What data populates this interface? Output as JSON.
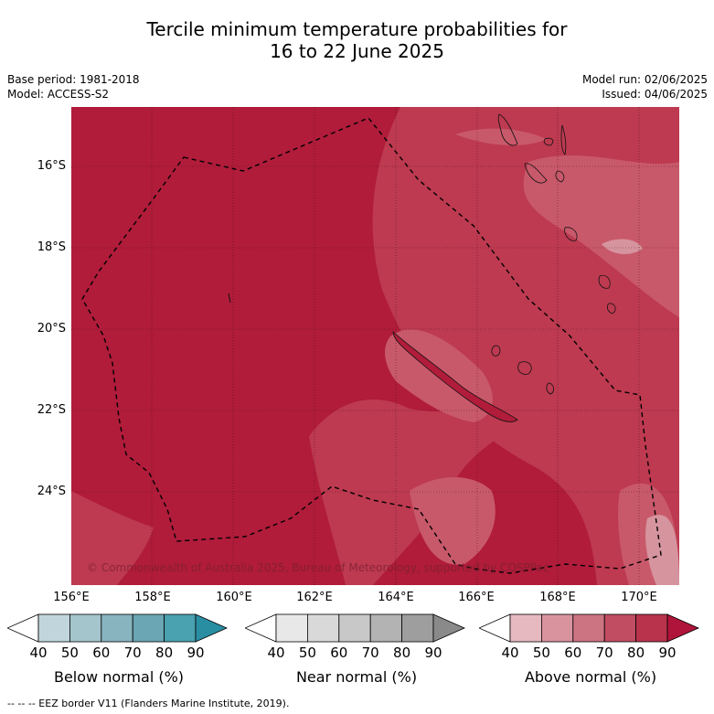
{
  "title_line1": "Tercile minimum temperature probabilities for",
  "title_line2": "16 to 22 June 2025",
  "base_period": "Base period: 1981-2018",
  "model": "Model: ACCESS-S2",
  "model_run": "Model run: 02/06/2025",
  "issued": "Issued: 04/06/2025",
  "copyright": "© Commonwealth of Australia 2025, Bureau of Meteorology, supported by COSPPac",
  "footer": "--  --  -- EEZ border V11 (Flanders Marine Institute, 2019).",
  "lat_labels": [
    "16°S",
    "18°S",
    "20°S",
    "22°S",
    "24°S"
  ],
  "lon_labels": [
    "156°E",
    "158°E",
    "160°E",
    "162°E",
    "164°E",
    "166°E",
    "168°E",
    "170°E"
  ],
  "colorbars": [
    {
      "label": "Below normal (%)",
      "ticks": [
        "40",
        "50",
        "60",
        "70",
        "80",
        "90"
      ],
      "colors": [
        "#ffffff",
        "#c0d6dc",
        "#a5c5cc",
        "#88b4bf",
        "#6aa6b3",
        "#4aa1b0",
        "#2a8ea3"
      ]
    },
    {
      "label": "Near normal (%)",
      "ticks": [
        "40",
        "50",
        "60",
        "70",
        "80",
        "90"
      ],
      "colors": [
        "#ffffff",
        "#e8e8e8",
        "#d9d9d9",
        "#c8c8c8",
        "#b3b3b3",
        "#9e9e9e",
        "#8a8a8a"
      ]
    },
    {
      "label": "Above normal (%)",
      "ticks": [
        "40",
        "50",
        "60",
        "70",
        "80",
        "90"
      ],
      "colors": [
        "#ffffff",
        "#e6b9c1",
        "#d9939f",
        "#cc7482",
        "#c04d61",
        "#b8334b",
        "#b0143a"
      ]
    }
  ],
  "map_colors": {
    "above_90": "#b01c3a",
    "above_80": "#bd3a50",
    "above_70": "#c8596a",
    "above_60": "#d6949e",
    "coast": "#111111"
  }
}
